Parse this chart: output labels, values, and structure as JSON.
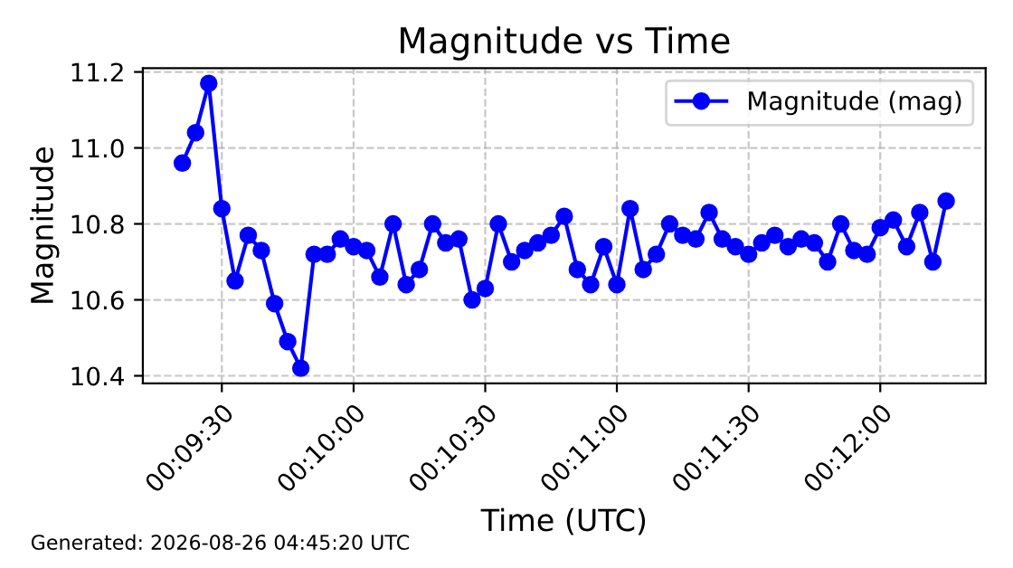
{
  "chart_data": {
    "type": "line",
    "title": "Magnitude vs Time",
    "xlabel": "Time (UTC)",
    "ylabel": "Magnitude",
    "annotations": [
      "Generated: 2026-08-26 04:45:20 UTC"
    ],
    "x": [
      0.15583,
      0.15667,
      0.1575,
      0.15833,
      0.15917,
      0.16,
      0.16083,
      0.16167,
      0.1625,
      0.16333,
      0.16417,
      0.165,
      0.16583,
      0.16667,
      0.1675,
      0.16833,
      0.16917,
      0.17,
      0.17083,
      0.17167,
      0.1725,
      0.17333,
      0.17417,
      0.175,
      0.17583,
      0.17667,
      0.1775,
      0.17833,
      0.17917,
      0.18,
      0.18083,
      0.18167,
      0.1825,
      0.18333,
      0.18417,
      0.185,
      0.18583,
      0.18667,
      0.1875,
      0.18833,
      0.18917,
      0.19,
      0.19083,
      0.19167,
      0.1925,
      0.19333,
      0.19417,
      0.195,
      0.19583,
      0.19667,
      0.1975,
      0.19833,
      0.19917,
      0.2,
      0.20083,
      0.20167,
      0.2025,
      0.20333,
      0.20417
    ],
    "series": [
      {
        "name": "Magnitude (mag)",
        "color": "#0000ff",
        "values": [
          10.96,
          11.04,
          11.17,
          10.84,
          10.65,
          10.77,
          10.73,
          10.59,
          10.49,
          10.42,
          10.72,
          10.72,
          10.76,
          10.74,
          10.73,
          10.66,
          10.8,
          10.64,
          10.68,
          10.8,
          10.75,
          10.76,
          10.6,
          10.63,
          10.8,
          10.7,
          10.73,
          10.75,
          10.77,
          10.82,
          10.68,
          10.64,
          10.74,
          10.64,
          10.84,
          10.68,
          10.72,
          10.8,
          10.77,
          10.76,
          10.83,
          10.76,
          10.74,
          10.72,
          10.75,
          10.77,
          10.74,
          10.76,
          10.75,
          10.7,
          10.8,
          10.73,
          10.72,
          10.79,
          10.81,
          10.74,
          10.83,
          10.7,
          10.86
        ]
      }
    ],
    "xlim": [
      0.15333,
      0.20667
    ],
    "xticks": [
      {
        "value": 0.15833,
        "label": "00:09:30"
      },
      {
        "value": 0.16667,
        "label": "00:10:00"
      },
      {
        "value": 0.175,
        "label": "00:10:30"
      },
      {
        "value": 0.18333,
        "label": "00:11:00"
      },
      {
        "value": 0.19167,
        "label": "00:11:30"
      },
      {
        "value": 0.2,
        "label": "00:12:00"
      }
    ],
    "ylim": [
      10.38,
      11.21
    ],
    "yticks": [
      {
        "value": 10.4,
        "label": "10.4"
      },
      {
        "value": 10.6,
        "label": "10.6"
      },
      {
        "value": 10.8,
        "label": "10.8"
      },
      {
        "value": 11.0,
        "label": "11.0"
      },
      {
        "value": 11.2,
        "label": "11.2"
      }
    ],
    "grid": true,
    "legend": "top right",
    "marker": "circle",
    "line_style": "solid"
  }
}
